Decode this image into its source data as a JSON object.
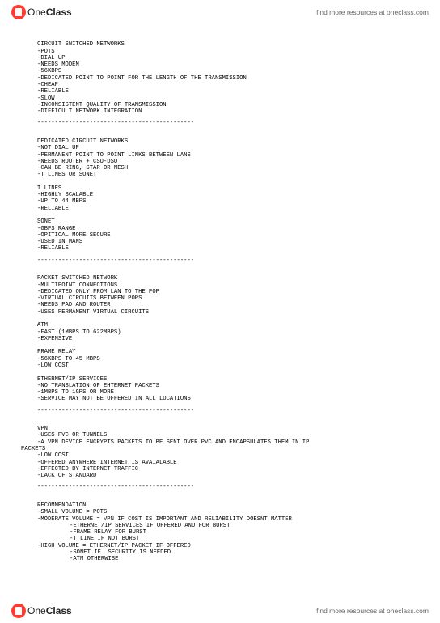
{
  "header": {
    "logo_one": "One",
    "logo_class": "Class",
    "link": "find more resources at oneclass.com"
  },
  "footer": {
    "logo_one": "One",
    "logo_class": "Class",
    "link": "find more resources at oneclass.com"
  },
  "doc": {
    "s1_title": "CIRCUIT SWITCHED NETWORKS",
    "s1_l1": "-POTS",
    "s1_l2": "-DIAL UP",
    "s1_l3": "-NEEDS MODEM",
    "s1_l4": "-56KBPS",
    "s1_l5": "-DEDICATED POINT TO POINT FOR THE LENGTH OF THE TRANSMISSION",
    "s1_l6": "-CHEAP",
    "s1_l7": "-RELIABLE",
    "s1_l8": "-SLOW",
    "s1_l9": "-INCONSISTENT QUALITY OF TRANSMISSION",
    "s1_l10": "-DIFFICULT NETWORK INTEGRATION",
    "sep": "---------------------------------------------",
    "s2_title": "DEDICATED CIRCUIT NETWORKS",
    "s2_l1": "-NOT DIAL UP",
    "s2_l2": "-PERMANENT POINT TO POINT LINKS BETWEEN LANS",
    "s2_l3": "-NEEDS ROUTER + CSU-DSU",
    "s2_l4": "-CAN BE RING, STAR OR MESH",
    "s2_l5": "-T LINES OR SONET",
    "s3_title": "T LINES",
    "s3_l1": "-HIGHLY SCALABLE",
    "s3_l2": "-UP TO 44 MBPS",
    "s3_l3": "-RELIABLE",
    "s4_title": "SONET",
    "s4_l1": "-GBPS RANGE",
    "s4_l2": "-OPITICAL MORE SECURE",
    "s4_l3": "-USED IN MANS",
    "s4_l4": "-RELIABLE",
    "s5_title": "PACKET SWITCHED NETWORK",
    "s5_l1": "-MULTIPOINT CONNECTIONS",
    "s5_l2": "-DEDICATED ONLY FROM LAN TO THE POP",
    "s5_l3": "-VIRTUAL CIRCUITS BETWEEN POPS",
    "s5_l4": "-NEEDS PAD AND ROUTER",
    "s5_l5": "-USES PERMANENT VIRTUAL CIRCUITS",
    "s6_title": "ATM",
    "s6_l1": "-FAST (1MBPS TO 622MBPS)",
    "s6_l2": "-EXPENSIVE",
    "s7_title": "FRAME RELAY",
    "s7_l1": "-56KBPS TO 45 MBPS",
    "s7_l2": "-LOW COST",
    "s8_title": "ETHERNET/IP SERVICES",
    "s8_l1": "-NO TRANSLATION OF EHTERNET PACKETS",
    "s8_l2": "-1MBPS TO 1GPS OR MORE",
    "s8_l3": "-SERVICE MAY NOT BE OFFERED IN ALL LOCATIONS",
    "s9_title": "VPN",
    "s9_l1": "-USES PVC OR TUNNELS",
    "s9_l2a": "-A VPN DEVICE ENCRYPTS PACKETS TO BE SENT OVER PVC AND ENCAPSULATES THEM IN IP",
    "s9_l2b": "PACKETS",
    "s9_l3": "-LOW COST",
    "s9_l4": "-OFFERED ANYWHERE INTERNET IS AVAIALABLE",
    "s9_l5": "-EFFECTED BY INTERNET TRAFFIC",
    "s9_l6": "-LACK OF STANDARD",
    "s10_title": "RECOMMENDATION",
    "s10_l1": "-SMALL VOLUME = POTS",
    "s10_l2": "-MODERATE VOLUME = VPN IF COST IS IMPORTANT AND RELIABILITY DOESNT MATTER",
    "s10_l2a": "-ETHERNET/IP SERVICES IF OFFERED AND FOR BURST",
    "s10_l2b": "-FRAME RELAY FOR BURST",
    "s10_l2c": "-T LINE IF NOT BURST",
    "s10_l3": "-HIGH VOLUME = ETHERNET/IP PACKET IF OFFERED",
    "s10_l3a": "-SONET IF  SECURITY IS NEEDED",
    "s10_l3b": "-ATM OTHERWISE"
  }
}
